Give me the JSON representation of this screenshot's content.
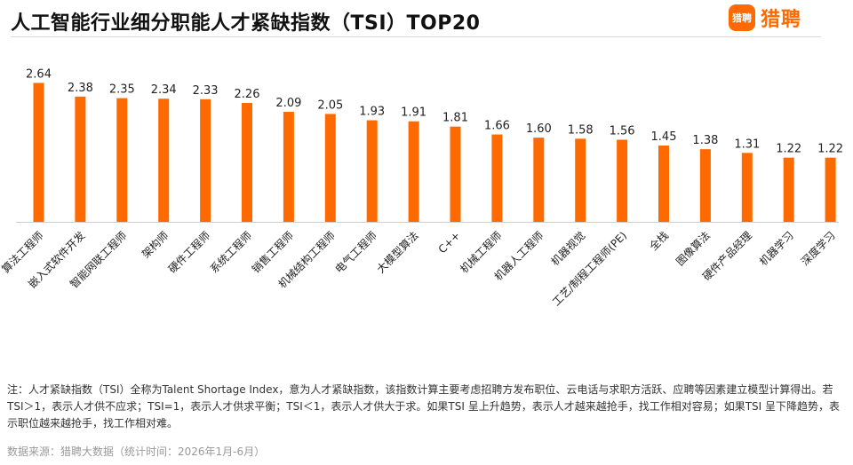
{
  "header": {
    "title": "人工智能行业细分职能人才紧缺指数（TSI）TOP20",
    "logo_icon_text": "猎聘",
    "logo_text": "猎聘"
  },
  "colors": {
    "bar": "#ff6a00",
    "accent": "#ff6a00"
  },
  "chart_data": {
    "type": "bar",
    "title": "人工智能行业细分职能人才紧缺指数（TSI）TOP20",
    "xlabel": "",
    "ylabel": "",
    "ylim": [
      0,
      2.9
    ],
    "grid": false,
    "categories": [
      "算法工程师",
      "嵌入式软件开发",
      "智能网联工程师",
      "架构师",
      "硬件工程师",
      "系统工程师",
      "销售工程师",
      "机械结构工程师",
      "电气工程师",
      "大模型算法",
      "C++",
      "机械工程师",
      "机器人工程师",
      "机器视觉",
      "工艺/制程工程师(PE)",
      "全栈",
      "图像算法",
      "硬件产品经理",
      "机器学习",
      "深度学习"
    ],
    "values": [
      2.64,
      2.38,
      2.35,
      2.34,
      2.33,
      2.26,
      2.09,
      2.05,
      1.93,
      1.91,
      1.81,
      1.66,
      1.6,
      1.58,
      1.56,
      1.45,
      1.38,
      1.31,
      1.22,
      1.22
    ],
    "value_labels": [
      "2.64",
      "2.38",
      "2.35",
      "2.34",
      "2.33",
      "2.26",
      "2.09",
      "2.05",
      "1.93",
      "1.91",
      "1.81",
      "1.66",
      "1.60",
      "1.58",
      "1.56",
      "1.45",
      "1.38",
      "1.31",
      "1.22",
      "1.22"
    ]
  },
  "footer": {
    "note": "注：人才紧缺指数（TSI）全称为Talent Shortage Index，意为人才紧缺指数，该指数计算主要考虑招聘方发布职位、云电话与求职方活跃、应聘等因素建立模型计算得出。若TSI＞1，表示人才供不应求；TSI=1，表示人才供求平衡；TSI＜1，表示人才供大于求。如果TSI 呈上升趋势，表示人才越来越抢手，找工作相对容易；如果TSI 呈下降趋势，表示职位越来越抢手，找工作相对难。",
    "source": "数据来源：猎聘大数据（统计时间：2026年1月-6月）"
  }
}
